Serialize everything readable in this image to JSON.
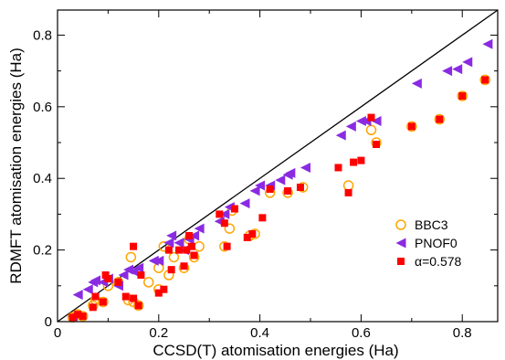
{
  "chart_data": {
    "type": "scatter",
    "title": "",
    "xlabel": "CCSD(T) atomisation energies (Ha)",
    "ylabel": "RDMFT atomisation energies (Ha)",
    "xlim": [
      0,
      0.87
    ],
    "ylim": [
      0,
      0.87
    ],
    "x_ticks": [
      0,
      0.2,
      0.4,
      0.6,
      0.8
    ],
    "y_ticks": [
      0,
      0.2,
      0.4,
      0.6,
      0.8
    ],
    "x_tick_labels": [
      "0",
      "0.2",
      "0.4",
      "0.6",
      "0.8"
    ],
    "y_tick_labels": [
      "0",
      "0.2",
      "0.4",
      "0.6",
      "0.8"
    ],
    "grid": false,
    "legend_position": "lower-right",
    "reference_line": {
      "from": [
        0,
        0
      ],
      "to": [
        0.87,
        0.87
      ],
      "color": "#000000"
    },
    "series": [
      {
        "name": "BBC3",
        "marker": "circle-open",
        "color": "#FFA500",
        "points": [
          [
            0.03,
            0.012
          ],
          [
            0.04,
            0.02
          ],
          [
            0.05,
            0.015
          ],
          [
            0.07,
            0.045
          ],
          [
            0.075,
            0.06
          ],
          [
            0.09,
            0.055
          ],
          [
            0.1,
            0.1
          ],
          [
            0.12,
            0.11
          ],
          [
            0.14,
            0.06
          ],
          [
            0.15,
            0.055
          ],
          [
            0.145,
            0.18
          ],
          [
            0.16,
            0.045
          ],
          [
            0.18,
            0.11
          ],
          [
            0.2,
            0.09
          ],
          [
            0.2,
            0.15
          ],
          [
            0.21,
            0.21
          ],
          [
            0.22,
            0.13
          ],
          [
            0.23,
            0.18
          ],
          [
            0.25,
            0.15
          ],
          [
            0.26,
            0.23
          ],
          [
            0.27,
            0.18
          ],
          [
            0.28,
            0.21
          ],
          [
            0.33,
            0.21
          ],
          [
            0.34,
            0.26
          ],
          [
            0.345,
            0.31
          ],
          [
            0.38,
            0.24
          ],
          [
            0.39,
            0.245
          ],
          [
            0.42,
            0.36
          ],
          [
            0.455,
            0.36
          ],
          [
            0.485,
            0.375
          ],
          [
            0.575,
            0.38
          ],
          [
            0.62,
            0.535
          ],
          [
            0.63,
            0.5
          ],
          [
            0.7,
            0.545
          ],
          [
            0.755,
            0.565
          ],
          [
            0.8,
            0.63
          ],
          [
            0.845,
            0.675
          ]
        ]
      },
      {
        "name": "PNOF0",
        "marker": "triangle-left",
        "color": "#8A2BE2",
        "points": [
          [
            0.03,
            0.015
          ],
          [
            0.04,
            0.075
          ],
          [
            0.06,
            0.09
          ],
          [
            0.07,
            0.11
          ],
          [
            0.075,
            0.115
          ],
          [
            0.09,
            0.11
          ],
          [
            0.1,
            0.12
          ],
          [
            0.12,
            0.1
          ],
          [
            0.13,
            0.13
          ],
          [
            0.14,
            0.145
          ],
          [
            0.15,
            0.14
          ],
          [
            0.16,
            0.15
          ],
          [
            0.19,
            0.17
          ],
          [
            0.2,
            0.17
          ],
          [
            0.22,
            0.22
          ],
          [
            0.225,
            0.24
          ],
          [
            0.24,
            0.22
          ],
          [
            0.25,
            0.2
          ],
          [
            0.26,
            0.23
          ],
          [
            0.27,
            0.24
          ],
          [
            0.28,
            0.26
          ],
          [
            0.32,
            0.28
          ],
          [
            0.33,
            0.3
          ],
          [
            0.34,
            0.32
          ],
          [
            0.37,
            0.33
          ],
          [
            0.39,
            0.365
          ],
          [
            0.4,
            0.38
          ],
          [
            0.42,
            0.38
          ],
          [
            0.44,
            0.395
          ],
          [
            0.455,
            0.41
          ],
          [
            0.46,
            0.415
          ],
          [
            0.49,
            0.43
          ],
          [
            0.56,
            0.52
          ],
          [
            0.58,
            0.545
          ],
          [
            0.6,
            0.56
          ],
          [
            0.61,
            0.56
          ],
          [
            0.63,
            0.56
          ],
          [
            0.71,
            0.665
          ],
          [
            0.77,
            0.7
          ],
          [
            0.79,
            0.705
          ],
          [
            0.81,
            0.725
          ],
          [
            0.85,
            0.775
          ]
        ]
      },
      {
        "name": "α=0.578",
        "marker": "square",
        "color": "#FF0000",
        "points": [
          [
            0.03,
            0.012
          ],
          [
            0.04,
            0.02
          ],
          [
            0.05,
            0.015
          ],
          [
            0.07,
            0.04
          ],
          [
            0.075,
            0.07
          ],
          [
            0.09,
            0.055
          ],
          [
            0.095,
            0.13
          ],
          [
            0.1,
            0.12
          ],
          [
            0.12,
            0.11
          ],
          [
            0.135,
            0.07
          ],
          [
            0.15,
            0.065
          ],
          [
            0.15,
            0.21
          ],
          [
            0.16,
            0.045
          ],
          [
            0.165,
            0.13
          ],
          [
            0.2,
            0.08
          ],
          [
            0.21,
            0.09
          ],
          [
            0.22,
            0.2
          ],
          [
            0.225,
            0.145
          ],
          [
            0.24,
            0.2
          ],
          [
            0.25,
            0.155
          ],
          [
            0.255,
            0.2
          ],
          [
            0.26,
            0.24
          ],
          [
            0.265,
            0.21
          ],
          [
            0.27,
            0.185
          ],
          [
            0.32,
            0.3
          ],
          [
            0.33,
            0.275
          ],
          [
            0.335,
            0.21
          ],
          [
            0.35,
            0.315
          ],
          [
            0.375,
            0.235
          ],
          [
            0.385,
            0.245
          ],
          [
            0.405,
            0.29
          ],
          [
            0.42,
            0.37
          ],
          [
            0.455,
            0.365
          ],
          [
            0.48,
            0.375
          ],
          [
            0.555,
            0.43
          ],
          [
            0.575,
            0.36
          ],
          [
            0.585,
            0.445
          ],
          [
            0.6,
            0.45
          ],
          [
            0.62,
            0.57
          ],
          [
            0.63,
            0.495
          ],
          [
            0.7,
            0.545
          ],
          [
            0.755,
            0.565
          ],
          [
            0.8,
            0.63
          ],
          [
            0.845,
            0.675
          ]
        ]
      }
    ]
  }
}
